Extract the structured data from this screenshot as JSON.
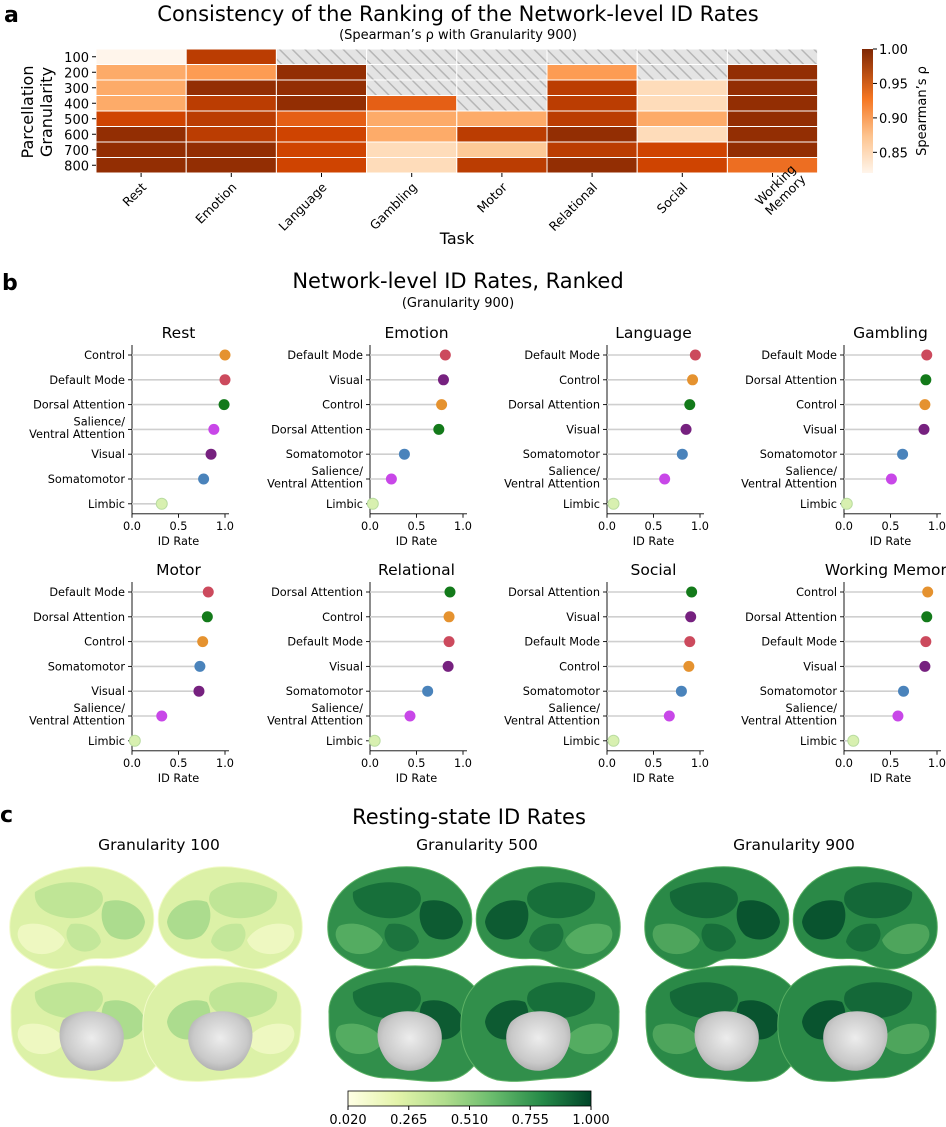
{
  "panel_labels": {
    "a": "a",
    "b": "b",
    "c": "c"
  },
  "chart_data": [
    {
      "type": "heatmap",
      "panel": "a",
      "title": "Consistency of the Ranking of the Network-level ID Rates",
      "subtitle": "(Spearman’s ρ with Granularity 900)",
      "xlabel": "Task",
      "ylabel": "Parcellation Granularity",
      "ylabel_lines": [
        "Parcellation",
        "Granularity"
      ],
      "x_categories": [
        "Rest",
        "Emotion",
        "Language",
        "Gambling",
        "Motor",
        "Relational",
        "Social",
        "Working Memory"
      ],
      "x_tick_lines": [
        [
          "Rest"
        ],
        [
          "Emotion"
        ],
        [
          "Language"
        ],
        [
          "Gambling"
        ],
        [
          "Motor"
        ],
        [
          "Relational"
        ],
        [
          "Social"
        ],
        [
          "Working",
          "Memory"
        ]
      ],
      "y_categories": [
        "100",
        "200",
        "300",
        "400",
        "500",
        "600",
        "700",
        "800"
      ],
      "values": [
        [
          0.82,
          0.97,
          null,
          null,
          null,
          null,
          null,
          null
        ],
        [
          0.89,
          0.9,
          0.99,
          null,
          null,
          0.9,
          null,
          0.99
        ],
        [
          0.89,
          0.99,
          0.99,
          null,
          null,
          0.97,
          0.85,
          0.99
        ],
        [
          0.89,
          0.97,
          0.99,
          0.94,
          null,
          0.97,
          0.85,
          0.99
        ],
        [
          0.96,
          0.97,
          0.94,
          0.89,
          0.89,
          0.97,
          0.89,
          0.99
        ],
        [
          0.99,
          0.97,
          0.96,
          0.89,
          0.97,
          0.99,
          0.85,
          0.99
        ],
        [
          0.99,
          0.99,
          0.96,
          0.85,
          0.87,
          0.97,
          0.96,
          0.99
        ],
        [
          0.99,
          0.99,
          0.96,
          0.85,
          0.97,
          0.99,
          0.96,
          0.93
        ]
      ],
      "missing_pattern": "hatched gray",
      "colorbar": {
        "label": "Spearman’s ρ",
        "min": 0.82,
        "max": 1.0,
        "ticks": [
          "0.85",
          "0.90",
          "0.95",
          "1.00"
        ],
        "cmap": "Oranges"
      }
    },
    {
      "type": "scatter",
      "panel": "b",
      "title": "Network-level ID Rates, Ranked",
      "subtitle": "(Granularity 900)",
      "xlabel": "ID Rate",
      "xlim": [
        0,
        1
      ],
      "xticks": [
        "0.0",
        "0.5",
        "1.0"
      ],
      "network_colors": {
        "Control": "#e5922f",
        "Default Mode": "#cc4a5d",
        "Dorsal Attention": "#137a1a",
        "Salience/Ventral Attention": "#c847e8",
        "Visual": "#76217f",
        "Somatomotor": "#4a83bb",
        "Limbic": "#d8f0b0"
      },
      "subplots": [
        {
          "title": "Rest",
          "networks": [
            "Control",
            "Default Mode",
            "Dorsal Attention",
            "Salience/Ventral Attention",
            "Visual",
            "Somatomotor",
            "Limbic"
          ],
          "values": [
            1.0,
            1.0,
            0.99,
            0.88,
            0.85,
            0.77,
            0.32
          ]
        },
        {
          "title": "Emotion",
          "networks": [
            "Default Mode",
            "Visual",
            "Control",
            "Dorsal Attention",
            "Somatomotor",
            "Salience/Ventral Attention",
            "Limbic"
          ],
          "values": [
            0.81,
            0.79,
            0.77,
            0.74,
            0.37,
            0.23,
            0.03
          ]
        },
        {
          "title": "Language",
          "networks": [
            "Default Mode",
            "Control",
            "Dorsal Attention",
            "Visual",
            "Somatomotor",
            "Salience/Ventral Attention",
            "Limbic"
          ],
          "values": [
            0.95,
            0.92,
            0.89,
            0.85,
            0.81,
            0.62,
            0.07
          ]
        },
        {
          "title": "Gambling",
          "networks": [
            "Default Mode",
            "Dorsal Attention",
            "Control",
            "Visual",
            "Somatomotor",
            "Salience/Ventral Attention",
            "Limbic"
          ],
          "values": [
            0.89,
            0.88,
            0.87,
            0.86,
            0.63,
            0.51,
            0.03
          ]
        },
        {
          "title": "Motor",
          "networks": [
            "Default Mode",
            "Dorsal Attention",
            "Control",
            "Somatomotor",
            "Visual",
            "Salience/Ventral Attention",
            "Limbic"
          ],
          "values": [
            0.82,
            0.81,
            0.76,
            0.73,
            0.72,
            0.32,
            0.03
          ]
        },
        {
          "title": "Relational",
          "networks": [
            "Dorsal Attention",
            "Control",
            "Default Mode",
            "Visual",
            "Somatomotor",
            "Salience/Ventral Attention",
            "Limbic"
          ],
          "values": [
            0.86,
            0.85,
            0.85,
            0.84,
            0.62,
            0.43,
            0.05
          ]
        },
        {
          "title": "Social",
          "networks": [
            "Dorsal Attention",
            "Visual",
            "Default Mode",
            "Control",
            "Somatomotor",
            "Salience/Ventral Attention",
            "Limbic"
          ],
          "values": [
            0.91,
            0.9,
            0.89,
            0.88,
            0.8,
            0.67,
            0.07
          ]
        },
        {
          "title": "Working Memory",
          "networks": [
            "Control",
            "Dorsal Attention",
            "Default Mode",
            "Visual",
            "Somatomotor",
            "Salience/Ventral Attention",
            "Limbic"
          ],
          "values": [
            0.9,
            0.89,
            0.88,
            0.87,
            0.64,
            0.58,
            0.1
          ]
        }
      ]
    },
    {
      "type": "heatmap",
      "panel": "c",
      "title": "Resting-state ID Rates",
      "views": [
        {
          "title": "Granularity 100",
          "tone": 0.35
        },
        {
          "title": "Granularity 500",
          "tone": 0.88
        },
        {
          "title": "Granularity 900",
          "tone": 0.9
        }
      ],
      "colorbar": {
        "min": 0.02,
        "max": 1.0,
        "ticks": [
          "0.020",
          "0.265",
          "0.510",
          "0.755",
          "1.000"
        ],
        "cmap": "YlGn"
      }
    }
  ]
}
